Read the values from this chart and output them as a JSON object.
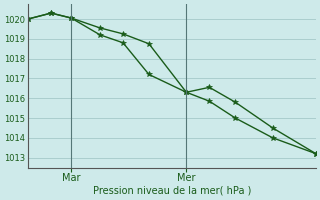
{
  "background_color": "#ceeaea",
  "grid_color": "#aacece",
  "line_color": "#1a5c1a",
  "marker_color": "#1a5c1a",
  "xlabel": "Pression niveau de la mer( hPa )",
  "ylim": [
    1012.5,
    1020.75
  ],
  "yticks": [
    1013,
    1014,
    1015,
    1016,
    1017,
    1018,
    1019,
    1020
  ],
  "xlim": [
    0,
    10
  ],
  "x_day_labels": [
    {
      "label": "Mar",
      "x": 1.5
    },
    {
      "label": "Mer",
      "x": 5.5
    }
  ],
  "vline_positions": [
    1.5,
    5.5
  ],
  "series1_x": [
    0.0,
    0.8,
    1.5,
    2.5,
    3.3,
    4.2,
    5.5,
    6.3,
    7.2,
    8.5,
    10.0
  ],
  "series1_y": [
    1020.0,
    1020.3,
    1020.05,
    1019.55,
    1019.25,
    1018.75,
    1016.3,
    1016.55,
    1015.8,
    1014.5,
    1013.2
  ],
  "series2_x": [
    0.0,
    0.8,
    1.5,
    2.5,
    3.3,
    4.2,
    5.5,
    6.3,
    7.2,
    8.5,
    10.0
  ],
  "series2_y": [
    1020.0,
    1020.3,
    1020.05,
    1019.2,
    1018.8,
    1017.2,
    1016.3,
    1015.85,
    1015.0,
    1014.0,
    1013.2
  ],
  "axis_color": "#555555",
  "tick_color": "#1a5c1a",
  "xlabel_color": "#1a5c1a",
  "xlabel_fontsize": 7,
  "ytick_fontsize": 6,
  "xtick_fontsize": 7
}
